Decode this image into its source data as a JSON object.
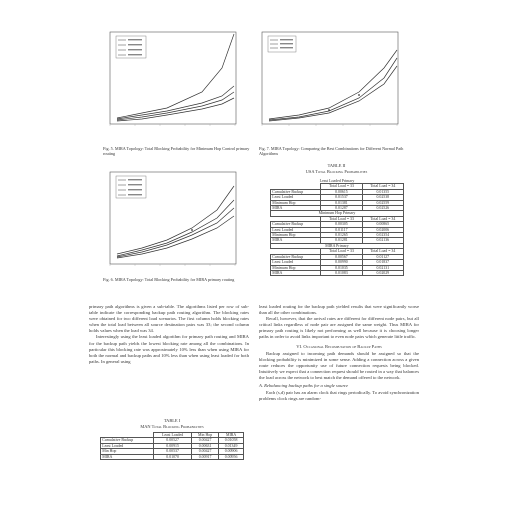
{
  "figures": {
    "fig5": {
      "caption": "Fig. 5.   MIRA Topology: Total Blocking Probability for Minimum Hop Control primary routing",
      "legend": [
        "",
        "",
        "",
        ""
      ]
    },
    "fig6": {
      "caption": "Fig. 6.   MIRA Topology: Total Blocking Probability for MIRA primary routing",
      "legend": [
        "",
        "",
        "",
        ""
      ]
    },
    "fig7": {
      "caption": "Fig. 7.   MIRA Topology: Comparing the Best Combinations for Different Normal Path Algorithms"
    }
  },
  "table2": {
    "label": "TABLE II",
    "title": "USA Total Blocking Probabilities",
    "groups": [
      {
        "name": "Least Loaded Primary",
        "headers": [
          "",
          "Total Load = 33",
          "Total Load = 34"
        ],
        "rows": [
          [
            "Cumulative Backup",
            "0.00615",
            "0.01355"
          ],
          [
            "Least Loaded",
            "0.01537",
            "0.02538"
          ],
          [
            "Minimum Hop",
            "0.01381",
            "0.02559"
          ],
          [
            "MIRA",
            "0.01287",
            "0.02526"
          ]
        ]
      },
      {
        "name": "Minimum Hop Primary",
        "headers": [
          "",
          "Total Load = 33",
          "Total Load = 34"
        ],
        "rows": [
          [
            "Cumulative Backup",
            "0.00305",
            "0.00865"
          ],
          [
            "Least Loaded",
            "0.01117",
            "0.02006"
          ],
          [
            "Minimum Hop",
            "0.01265",
            "0.02354"
          ],
          [
            "MIRA",
            "0.01281",
            "0.02136"
          ]
        ]
      },
      {
        "name": "MIRA Primary",
        "headers": [
          "",
          "Total Load = 33",
          "Total Load = 34"
        ],
        "rows": [
          [
            "Cumulative Backup",
            "0.00567",
            "0.01127"
          ],
          [
            "Least Loaded",
            "0.00990",
            "0.01837"
          ],
          [
            "Minimum Hop",
            "0.01035",
            "0.02131"
          ],
          [
            "MIRA",
            "0.01083",
            "0.02029"
          ]
        ]
      }
    ]
  },
  "left_text": [
    "primary path algorithms is given a sub-table. The algorithms listed per row of sub-table indicate the corresponding backup path routing algorithm. The blocking rates were obtained for two different load scenarios. The first column holds blocking rates when the total load between all source destination pairs was 33; the second column holds values when the load was 34.",
    "Interestingly using the least loaded algorithm for primary path routing and MIRA for the backup path yields the lowest blocking rate among all the combinations. In particular this blocking rate was approximately 10% less than when using MIRA for both the normal and backup paths and 10% less than when using least loaded for both paths. In general using"
  ],
  "table1": {
    "label": "TABLE I",
    "title": "MAN Total Blocking Probabilities",
    "headers": [
      "",
      "Least Loaded",
      "Min Hop",
      "MIRA"
    ],
    "rows": [
      [
        "Cumulative Backup",
        "0.00527",
        "0.00427",
        "0.01058"
      ],
      [
        "Least Loaded",
        "0.00915",
        "0.00631",
        "0.01349"
      ],
      [
        "Min Hop",
        "0.00537",
        "0.00427",
        "0.00906"
      ],
      [
        "MIRA",
        "0.01070",
        "0.00917",
        "0.00956"
      ]
    ]
  },
  "right_text": {
    "p1": "least loaded routing for the backup path yielded results that were significantly worse than all the other combinations.",
    "p2": "Recall, however, that the arrival rates are different for different node pairs, but all critical links regardless of node pair are assigned the same weight. Thus MIRA for primary path routing is likely not performing as well because it is choosing longer paths in order to avoid links important to even node pairs which generate little traffic.",
    "section": "VI.   Occasional Recomputation of Backup Paths",
    "p3": "Backup assigned to incoming path demands should be assigned so that the blocking probability is minimized in some sense. Adding a connection across a given route reduces the opportunity use of future connection requests being blocked. Intuitively we expect that a connection request should be routed in a way that balances the load across the network to best match the demand offered to the network.",
    "subsection": "A.   Rebalancing backup paths for a single source",
    "p4": "Each (s,d) pair has an alarm clock that rings periodically. To avoid synchronization problems clock rings are random-"
  }
}
